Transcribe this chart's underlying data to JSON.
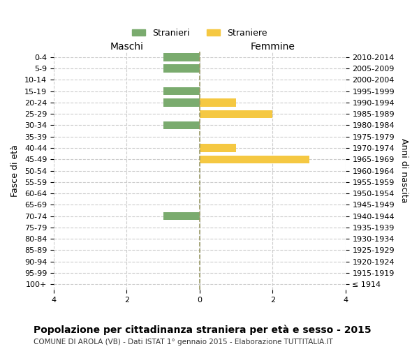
{
  "age_groups": [
    "100+",
    "95-99",
    "90-94",
    "85-89",
    "80-84",
    "75-79",
    "70-74",
    "65-69",
    "60-64",
    "55-59",
    "50-54",
    "45-49",
    "40-44",
    "35-39",
    "30-34",
    "25-29",
    "20-24",
    "15-19",
    "10-14",
    "5-9",
    "0-4"
  ],
  "birth_years": [
    "≤ 1914",
    "1915-1919",
    "1920-1924",
    "1925-1929",
    "1930-1934",
    "1935-1939",
    "1940-1944",
    "1945-1949",
    "1950-1954",
    "1955-1959",
    "1960-1964",
    "1965-1969",
    "1970-1974",
    "1975-1979",
    "1980-1984",
    "1985-1989",
    "1990-1994",
    "1995-1999",
    "2000-2004",
    "2005-2009",
    "2010-2014"
  ],
  "maschi": [
    0,
    0,
    0,
    0,
    0,
    0,
    -1,
    0,
    0,
    0,
    0,
    0,
    0,
    0,
    -1,
    0,
    -1,
    -1,
    0,
    -1,
    -1
  ],
  "femmine": [
    0,
    0,
    0,
    0,
    0,
    0,
    0,
    0,
    0,
    0,
    0,
    3,
    1,
    0,
    0,
    2,
    1,
    0,
    0,
    0,
    0
  ],
  "color_maschi": "#7aab6e",
  "color_femmine": "#f5c842",
  "title_main": "Popolazione per cittadinanza straniera per età e sesso - 2015",
  "subtitle": "COMUNE DI AROLA (VB) - Dati ISTAT 1° gennaio 2015 - Elaborazione TUTTITALIA.IT",
  "xlabel_left": "Maschi",
  "xlabel_right": "Femmine",
  "ylabel_left": "Fasce di età",
  "ylabel_right": "Anni di nascita",
  "legend_maschi": "Stranieri",
  "legend_femmine": "Straniere",
  "xlim": [
    -4,
    4
  ],
  "xticks": [
    -4,
    -2,
    0,
    2,
    4
  ],
  "xticklabels": [
    "4",
    "2",
    "0",
    "2",
    "4"
  ],
  "background_color": "#ffffff",
  "grid_color": "#cccccc",
  "bar_height": 0.7,
  "figsize": [
    6.0,
    5.0
  ],
  "dpi": 100
}
